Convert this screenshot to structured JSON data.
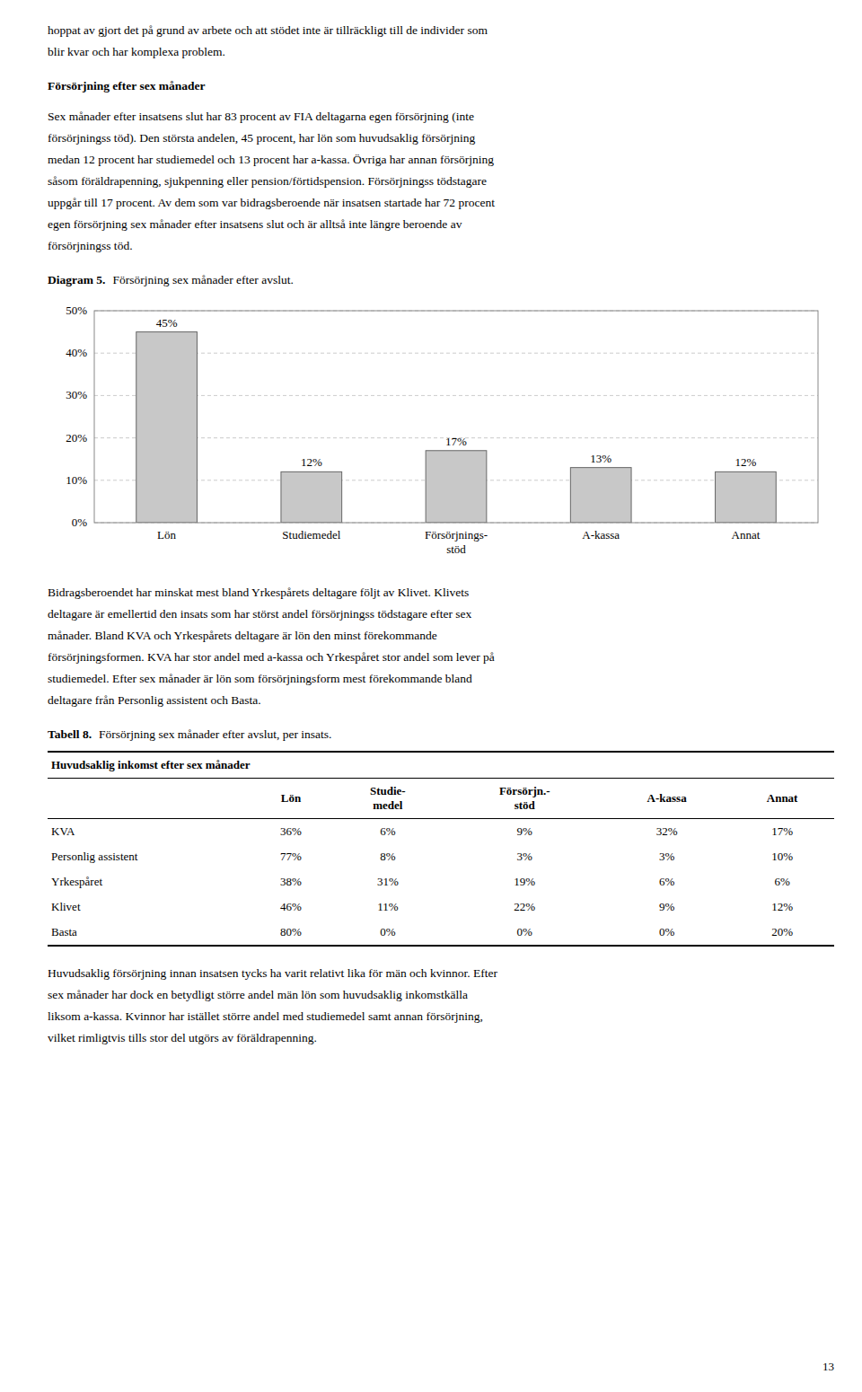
{
  "page_number": "13",
  "top_text": [
    "hoppat av gjort det på grund av arbete och att stödet inte är tillräckligt till de individer som",
    "blir kvar och har komplexa problem."
  ],
  "section_heading": "Försörjning efter sex månader",
  "p1_lines": [
    "Sex månader efter insatsens slut har 83 procent av FIA deltagarna egen försörjning (inte",
    "försörjningss töd). Den största andelen, 45 procent, har lön som huvudsaklig försörjning",
    "medan 12 procent har studiemedel och 13 procent har a-kassa. Övriga har annan försörjning",
    "såsom föräldrapenning, sjukpenning eller pension/förtidspension. Försörjningss tödstagare",
    "uppgår till 17 procent. Av dem som var bidragsberoende när insatsen startade har 72 procent",
    "egen försörjning sex månader efter insatsens slut och är alltså inte längre beroende av",
    "försörjningss töd."
  ],
  "diagram_label": "Diagram 5.",
  "chart_data": {
    "type": "bar",
    "title": "Försörjning sex månader efter avslut.",
    "categories": [
      "Lön",
      "Studiemedel",
      "Försörjnings-\nstöd",
      "A-kassa",
      "Annat"
    ],
    "values": [
      45,
      12,
      17,
      13,
      12
    ],
    "value_labels": [
      "45%",
      "12%",
      "17%",
      "13%",
      "12%"
    ],
    "data_labels": true,
    "color": "#c8c8c8",
    "ylim": [
      0,
      50
    ],
    "yticks": [
      {
        "value": 0,
        "label": "0%"
      },
      {
        "value": 10,
        "label": "10%"
      },
      {
        "value": 20,
        "label": "20%"
      },
      {
        "value": 30,
        "label": "30%"
      },
      {
        "value": 40,
        "label": "40%"
      },
      {
        "value": 50,
        "label": "50%"
      }
    ],
    "grid": true
  },
  "p2_lines": [
    "Bidragsberoendet har minskat mest bland Yrkespårets deltagare följt av Klivet. Klivets",
    "deltagare är emellertid den insats som har störst andel försörjningss tödstagare efter sex",
    "månader. Bland KVA och Yrkespårets deltagare är lön den minst förekommande",
    "försörjningsformen. KVA har stor andel med a-kassa och Yrkespåret stor andel som lever på",
    "studiemedel. Efter sex månader är lön som försörjningsform mest förekommande bland",
    "deltagare från Personlig assistent och Basta."
  ],
  "table": {
    "label": "Tabell 8.",
    "title": "Försörjning sex månader efter avslut, per insats.",
    "header_main": "Huvudsaklig inkomst efter sex månader",
    "columns": [
      "Lön",
      "Studie-\nmedel",
      "Försörjn.-\nstöd",
      "A-kassa",
      "Annat"
    ],
    "rows": [
      [
        "KVA",
        "36%",
        "6%",
        "9%",
        "32%",
        "17%"
      ],
      [
        "Personlig assistent",
        "77%",
        "8%",
        "3%",
        "3%",
        "10%"
      ],
      [
        "Yrkespåret",
        "38%",
        "31%",
        "19%",
        "6%",
        "6%"
      ],
      [
        "Klivet",
        "46%",
        "11%",
        "22%",
        "9%",
        "12%"
      ],
      [
        "Basta",
        "80%",
        "0%",
        "0%",
        "0%",
        "20%"
      ]
    ]
  },
  "p3_lines": [
    "Huvudsaklig försörjning innan insatsen tycks ha varit relativt lika för män och kvinnor. Efter",
    "sex månader har dock en betydligt större andel män lön som huvudsaklig inkomstkälla",
    "liksom a-kassa. Kvinnor har istället större andel med studiemedel samt annan försörjning,",
    "vilket rimligtvis tills stor del utgörs av föräldrapenning."
  ]
}
